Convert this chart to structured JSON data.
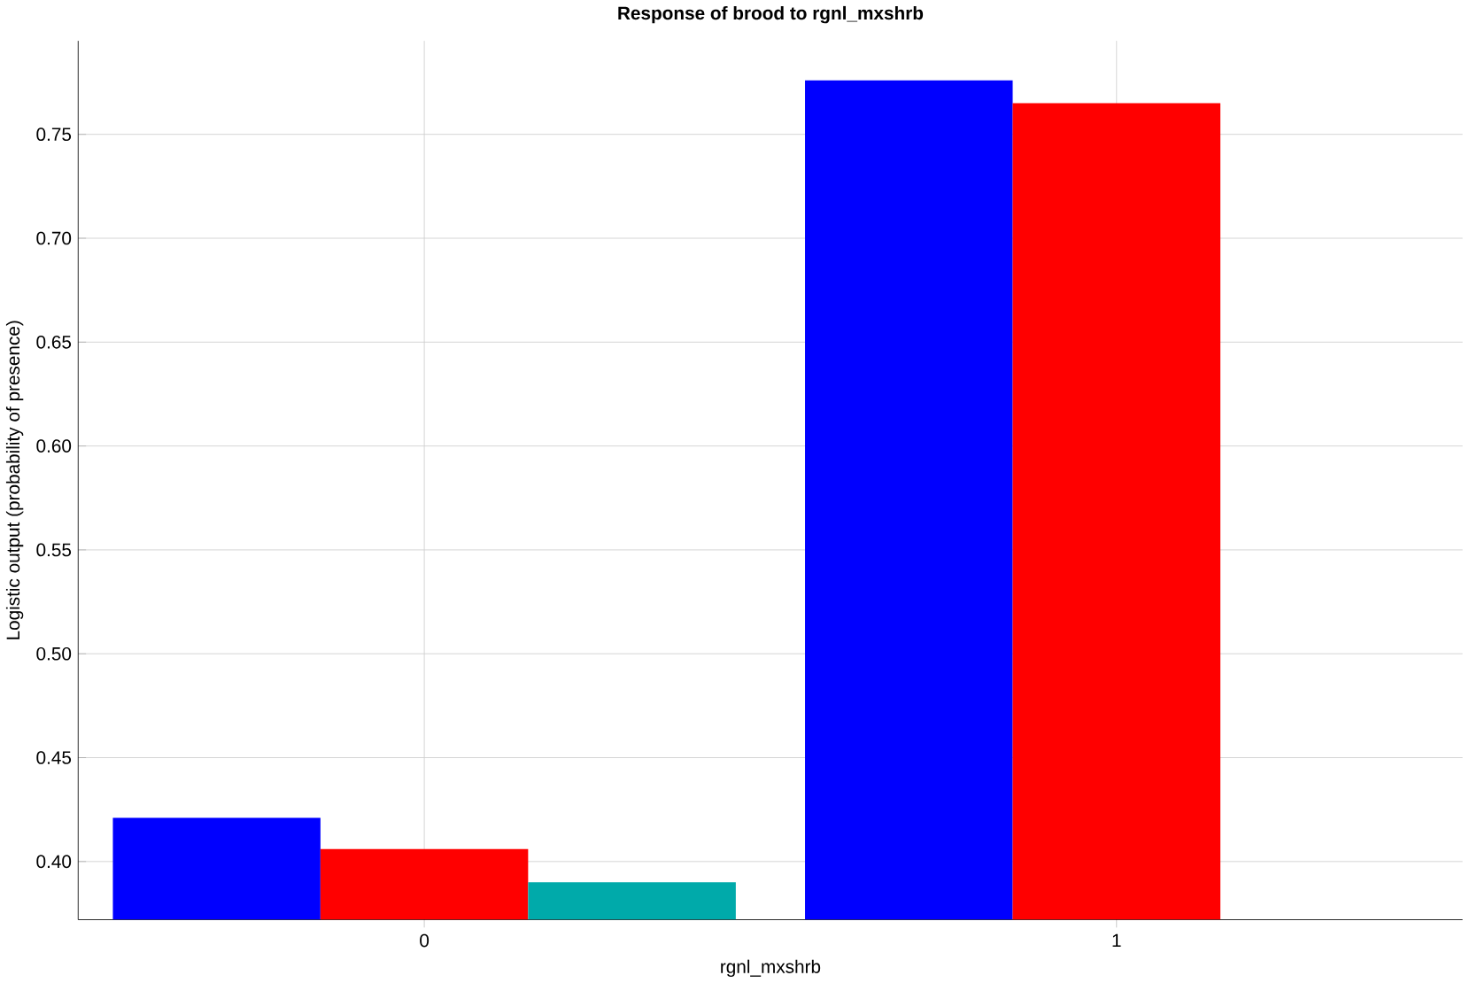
{
  "chart_data": {
    "type": "bar",
    "title": "Response of brood to rgnl_mxshrb",
    "xlabel": "rgnl_mxshrb",
    "ylabel": "Logistic output (probability of presence)",
    "categories": [
      "0",
      "1"
    ],
    "series": [
      {
        "color": "#0000ff",
        "values": [
          0.421,
          0.776
        ]
      },
      {
        "color": "#ff0000",
        "values": [
          0.406,
          0.765
        ]
      },
      {
        "color": "#00aaaa",
        "values": [
          0.39,
          null
        ]
      }
    ],
    "ylim": [
      0.372,
      0.795
    ],
    "yticks": [
      {
        "value": 0.4,
        "label": "0.40"
      },
      {
        "value": 0.45,
        "label": "0.45"
      },
      {
        "value": 0.5,
        "label": "0.50"
      },
      {
        "value": 0.55,
        "label": "0.55"
      },
      {
        "value": 0.6,
        "label": "0.60"
      },
      {
        "value": 0.65,
        "label": "0.65"
      },
      {
        "value": 0.7,
        "label": "0.70"
      },
      {
        "value": 0.75,
        "label": "0.75"
      }
    ],
    "grid": true
  }
}
